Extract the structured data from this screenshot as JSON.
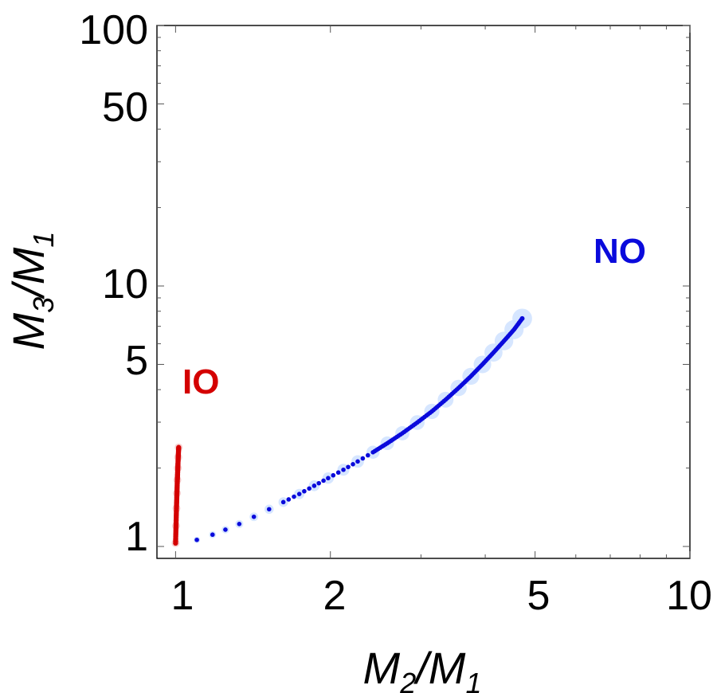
{
  "chart_data": {
    "type": "scatter",
    "title": "",
    "xscale": "log",
    "yscale": "log",
    "xlim": [
      0.92,
      10
    ],
    "ylim": [
      0.9,
      100
    ],
    "x_ticks": [
      1,
      2,
      5,
      10
    ],
    "x_tick_labels": [
      "1",
      "2",
      "5",
      "10"
    ],
    "y_ticks": [
      1,
      5,
      10,
      50,
      100
    ],
    "y_tick_labels": [
      "1",
      "5",
      "10",
      "50",
      "100"
    ],
    "xlabel": {
      "main": "M",
      "sub1": "2",
      "sep": "/M",
      "sub2": "1"
    },
    "ylabel": {
      "main": "M",
      "sub1": "3",
      "sep": "/M",
      "sub2": "1"
    },
    "grid": false,
    "series": [
      {
        "name": "NO",
        "color": "#0a0adc",
        "halo_color": "#cfe2ff",
        "x": [
          1.1,
          1.18,
          1.25,
          1.33,
          1.42,
          1.52,
          1.62,
          1.74,
          1.86,
          1.98,
          2.12,
          2.26,
          2.42,
          2.58,
          2.76,
          2.95,
          3.15,
          3.35,
          3.55,
          3.75,
          3.95,
          4.15,
          4.35,
          4.55,
          4.72
        ],
        "y": [
          1.06,
          1.11,
          1.16,
          1.22,
          1.3,
          1.39,
          1.48,
          1.59,
          1.71,
          1.83,
          1.97,
          2.12,
          2.3,
          2.49,
          2.72,
          2.99,
          3.3,
          3.66,
          4.06,
          4.5,
          5.0,
          5.55,
          6.15,
          6.8,
          7.5
        ]
      },
      {
        "name": "IO",
        "color": "#d40000",
        "halo_color": "#f6caca",
        "x": [
          1.0,
          1.002,
          1.004,
          1.006,
          1.008,
          1.01,
          1.012,
          1.014
        ],
        "y": [
          1.03,
          1.2,
          1.4,
          1.6,
          1.8,
          2.0,
          2.2,
          2.4
        ]
      }
    ],
    "annotations": [
      {
        "text": "NO",
        "color": "#0a0adc"
      },
      {
        "text": "IO",
        "color": "#d40000"
      }
    ]
  }
}
